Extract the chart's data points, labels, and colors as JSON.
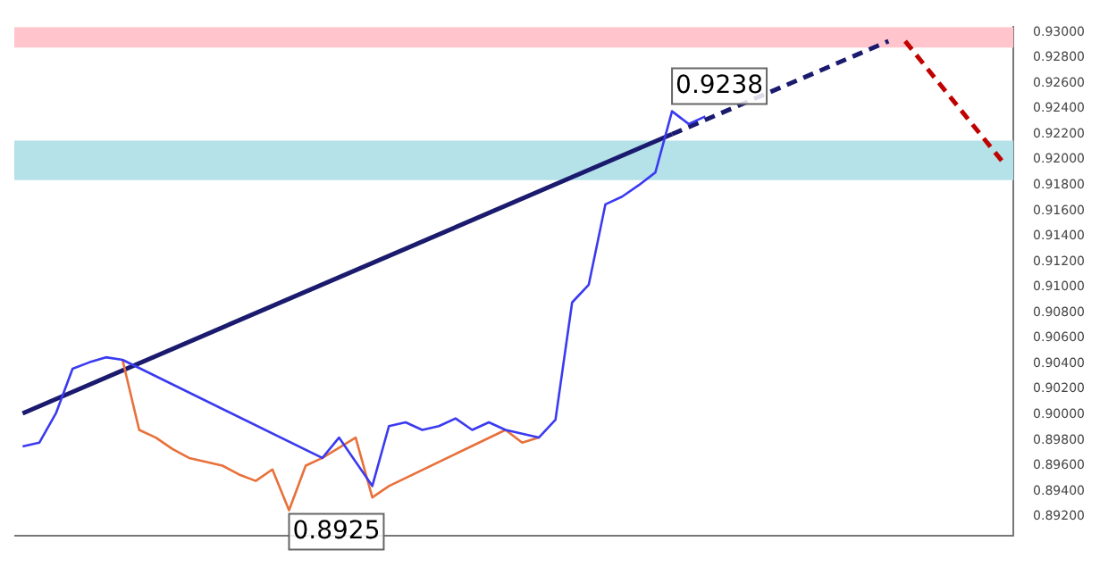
{
  "chart_data": {
    "type": "line",
    "categories": [
      null,
      null,
      null,
      null,
      null,
      null,
      null,
      null,
      null,
      null,
      null,
      null,
      null,
      null,
      null,
      null,
      null,
      null,
      null,
      null,
      null,
      null,
      null,
      null,
      null,
      null,
      null,
      null,
      null,
      null,
      null,
      null,
      null,
      null,
      null,
      null,
      null,
      null,
      null,
      null,
      null,
      null,
      null,
      null,
      null,
      null,
      null,
      null,
      null,
      null,
      null,
      null,
      null,
      null,
      null,
      null,
      null,
      null,
      null,
      null
    ],
    "series": [
      {
        "color": "#3a3af0",
        "values": [
          0.8975,
          0.8978,
          0.9001,
          0.9036,
          0.9041,
          0.9045,
          0.9043,
          null,
          null,
          null,
          null,
          null,
          null,
          null,
          null,
          null,
          null,
          null,
          0.8966,
          0.8982,
          null,
          0.8944,
          0.8991,
          0.8994,
          0.8988,
          0.8991,
          0.8997,
          0.8988,
          0.8994,
          0.8988,
          null,
          0.8982,
          0.8996,
          0.9088,
          0.9102,
          0.9165,
          0.9171,
          0.918,
          0.919,
          0.9238,
          0.9228,
          0.9234,
          null,
          null,
          null,
          null,
          null,
          null,
          null,
          null,
          null,
          null,
          null,
          null,
          null,
          null,
          null,
          null,
          null,
          null
        ],
        "value_labels": [
          null,
          null,
          null,
          null,
          null,
          null,
          null,
          null,
          null,
          null,
          null,
          null,
          null,
          null,
          null,
          null,
          null,
          null,
          null,
          null,
          null,
          null,
          null,
          null,
          null,
          null,
          null,
          null,
          null,
          null,
          null,
          null,
          null,
          null,
          null,
          null,
          null,
          null,
          null,
          "0.9238",
          null,
          null,
          null,
          null,
          null,
          null,
          null,
          null,
          null,
          null,
          null,
          null,
          null,
          null,
          null,
          null,
          null,
          null,
          null,
          null
        ]
      },
      {
        "color": "#e8703a",
        "values": [
          null,
          null,
          null,
          null,
          null,
          null,
          0.9043,
          0.8988,
          0.8982,
          0.8973,
          0.8966,
          0.8963,
          0.896,
          0.8953,
          0.8948,
          0.8957,
          0.8925,
          0.896,
          0.8966,
          null,
          0.8982,
          0.8935,
          0.8944,
          null,
          null,
          null,
          null,
          null,
          null,
          0.8988,
          0.8978,
          0.8982,
          null,
          null,
          null,
          null,
          null,
          null,
          null,
          null,
          null,
          null,
          null,
          null,
          null,
          null,
          null,
          null,
          null,
          null,
          null,
          null,
          null,
          null,
          null,
          null,
          null,
          null,
          null,
          null
        ],
        "value_labels": [
          null,
          null,
          null,
          null,
          null,
          null,
          null,
          null,
          null,
          null,
          null,
          null,
          null,
          null,
          null,
          null,
          "0.8925",
          null,
          null,
          null,
          null,
          null,
          null,
          null,
          null,
          null,
          null,
          null,
          null,
          null,
          null,
          null,
          null,
          null,
          null,
          null,
          null,
          null,
          null,
          null,
          null,
          null,
          null,
          null,
          null,
          null,
          null,
          null,
          null,
          null,
          null,
          null,
          null,
          null,
          null,
          null,
          null,
          null,
          null,
          null
        ]
      },
      {
        "color": "#1a1a6e",
        "line_style": "solid",
        "values": [
          0.9001,
          null,
          null,
          null,
          null,
          null,
          null,
          null,
          null,
          null,
          null,
          null,
          null,
          null,
          null,
          null,
          null,
          null,
          null,
          null,
          null,
          null,
          null,
          null,
          null,
          null,
          null,
          null,
          null,
          null,
          null,
          null,
          null,
          null,
          null,
          null,
          null,
          null,
          null,
          0.922,
          null,
          null,
          null,
          null,
          null,
          null,
          null,
          null,
          null,
          null,
          null,
          null,
          null,
          null,
          null,
          null,
          null,
          null,
          null,
          null
        ]
      },
      {
        "color": "#1a1a6e",
        "line_style": "dashed",
        "values": [
          null,
          null,
          null,
          null,
          null,
          null,
          null,
          null,
          null,
          null,
          null,
          null,
          null,
          null,
          null,
          null,
          null,
          null,
          null,
          null,
          null,
          null,
          null,
          null,
          null,
          null,
          null,
          null,
          null,
          null,
          null,
          null,
          null,
          null,
          null,
          null,
          null,
          null,
          null,
          0.922,
          null,
          null,
          null,
          null,
          null,
          null,
          null,
          null,
          null,
          null,
          null,
          null,
          0.9293,
          null,
          null,
          null,
          null,
          null,
          null,
          null
        ]
      },
      {
        "color": "#c00000",
        "line_style": "dashed",
        "values": [
          null,
          null,
          null,
          null,
          null,
          null,
          null,
          null,
          null,
          null,
          null,
          null,
          null,
          null,
          null,
          null,
          null,
          null,
          null,
          null,
          null,
          null,
          null,
          null,
          null,
          null,
          null,
          null,
          null,
          null,
          null,
          null,
          null,
          null,
          null,
          null,
          null,
          null,
          null,
          null,
          null,
          null,
          null,
          null,
          null,
          null,
          null,
          null,
          null,
          null,
          null,
          null,
          null,
          0.9293,
          null,
          null,
          null,
          null,
          null,
          0.9196
        ]
      }
    ],
    "bands": [
      {
        "axis": "y",
        "from": 0.9288,
        "to": 0.9304,
        "color": "#ffc4cc"
      },
      {
        "axis": "y",
        "from": 0.9184,
        "to": 0.9215,
        "color": "#b4e2e8"
      }
    ],
    "ylim": [
      0.8905,
      0.9304
    ],
    "yticks": [
      {
        "value": 0.892,
        "label": "0.89200"
      },
      {
        "value": 0.894,
        "label": "0.89400"
      },
      {
        "value": 0.896,
        "label": "0.89600"
      },
      {
        "value": 0.898,
        "label": "0.89800"
      },
      {
        "value": 0.9,
        "label": "0.90000"
      },
      {
        "value": 0.902,
        "label": "0.90200"
      },
      {
        "value": 0.904,
        "label": "0.90400"
      },
      {
        "value": 0.906,
        "label": "0.90600"
      },
      {
        "value": 0.908,
        "label": "0.90800"
      },
      {
        "value": 0.91,
        "label": "0.91000"
      },
      {
        "value": 0.912,
        "label": "0.91200"
      },
      {
        "value": 0.914,
        "label": "0.91400"
      },
      {
        "value": 0.916,
        "label": "0.91600"
      },
      {
        "value": 0.918,
        "label": "0.91800"
      },
      {
        "value": 0.92,
        "label": "0.92000"
      },
      {
        "value": 0.922,
        "label": "0.92200"
      },
      {
        "value": 0.924,
        "label": "0.92400"
      },
      {
        "value": 0.926,
        "label": "0.92600"
      },
      {
        "value": 0.928,
        "label": "0.92800"
      },
      {
        "value": 0.93,
        "label": "0.93000"
      }
    ],
    "tick_labels": "y"
  }
}
